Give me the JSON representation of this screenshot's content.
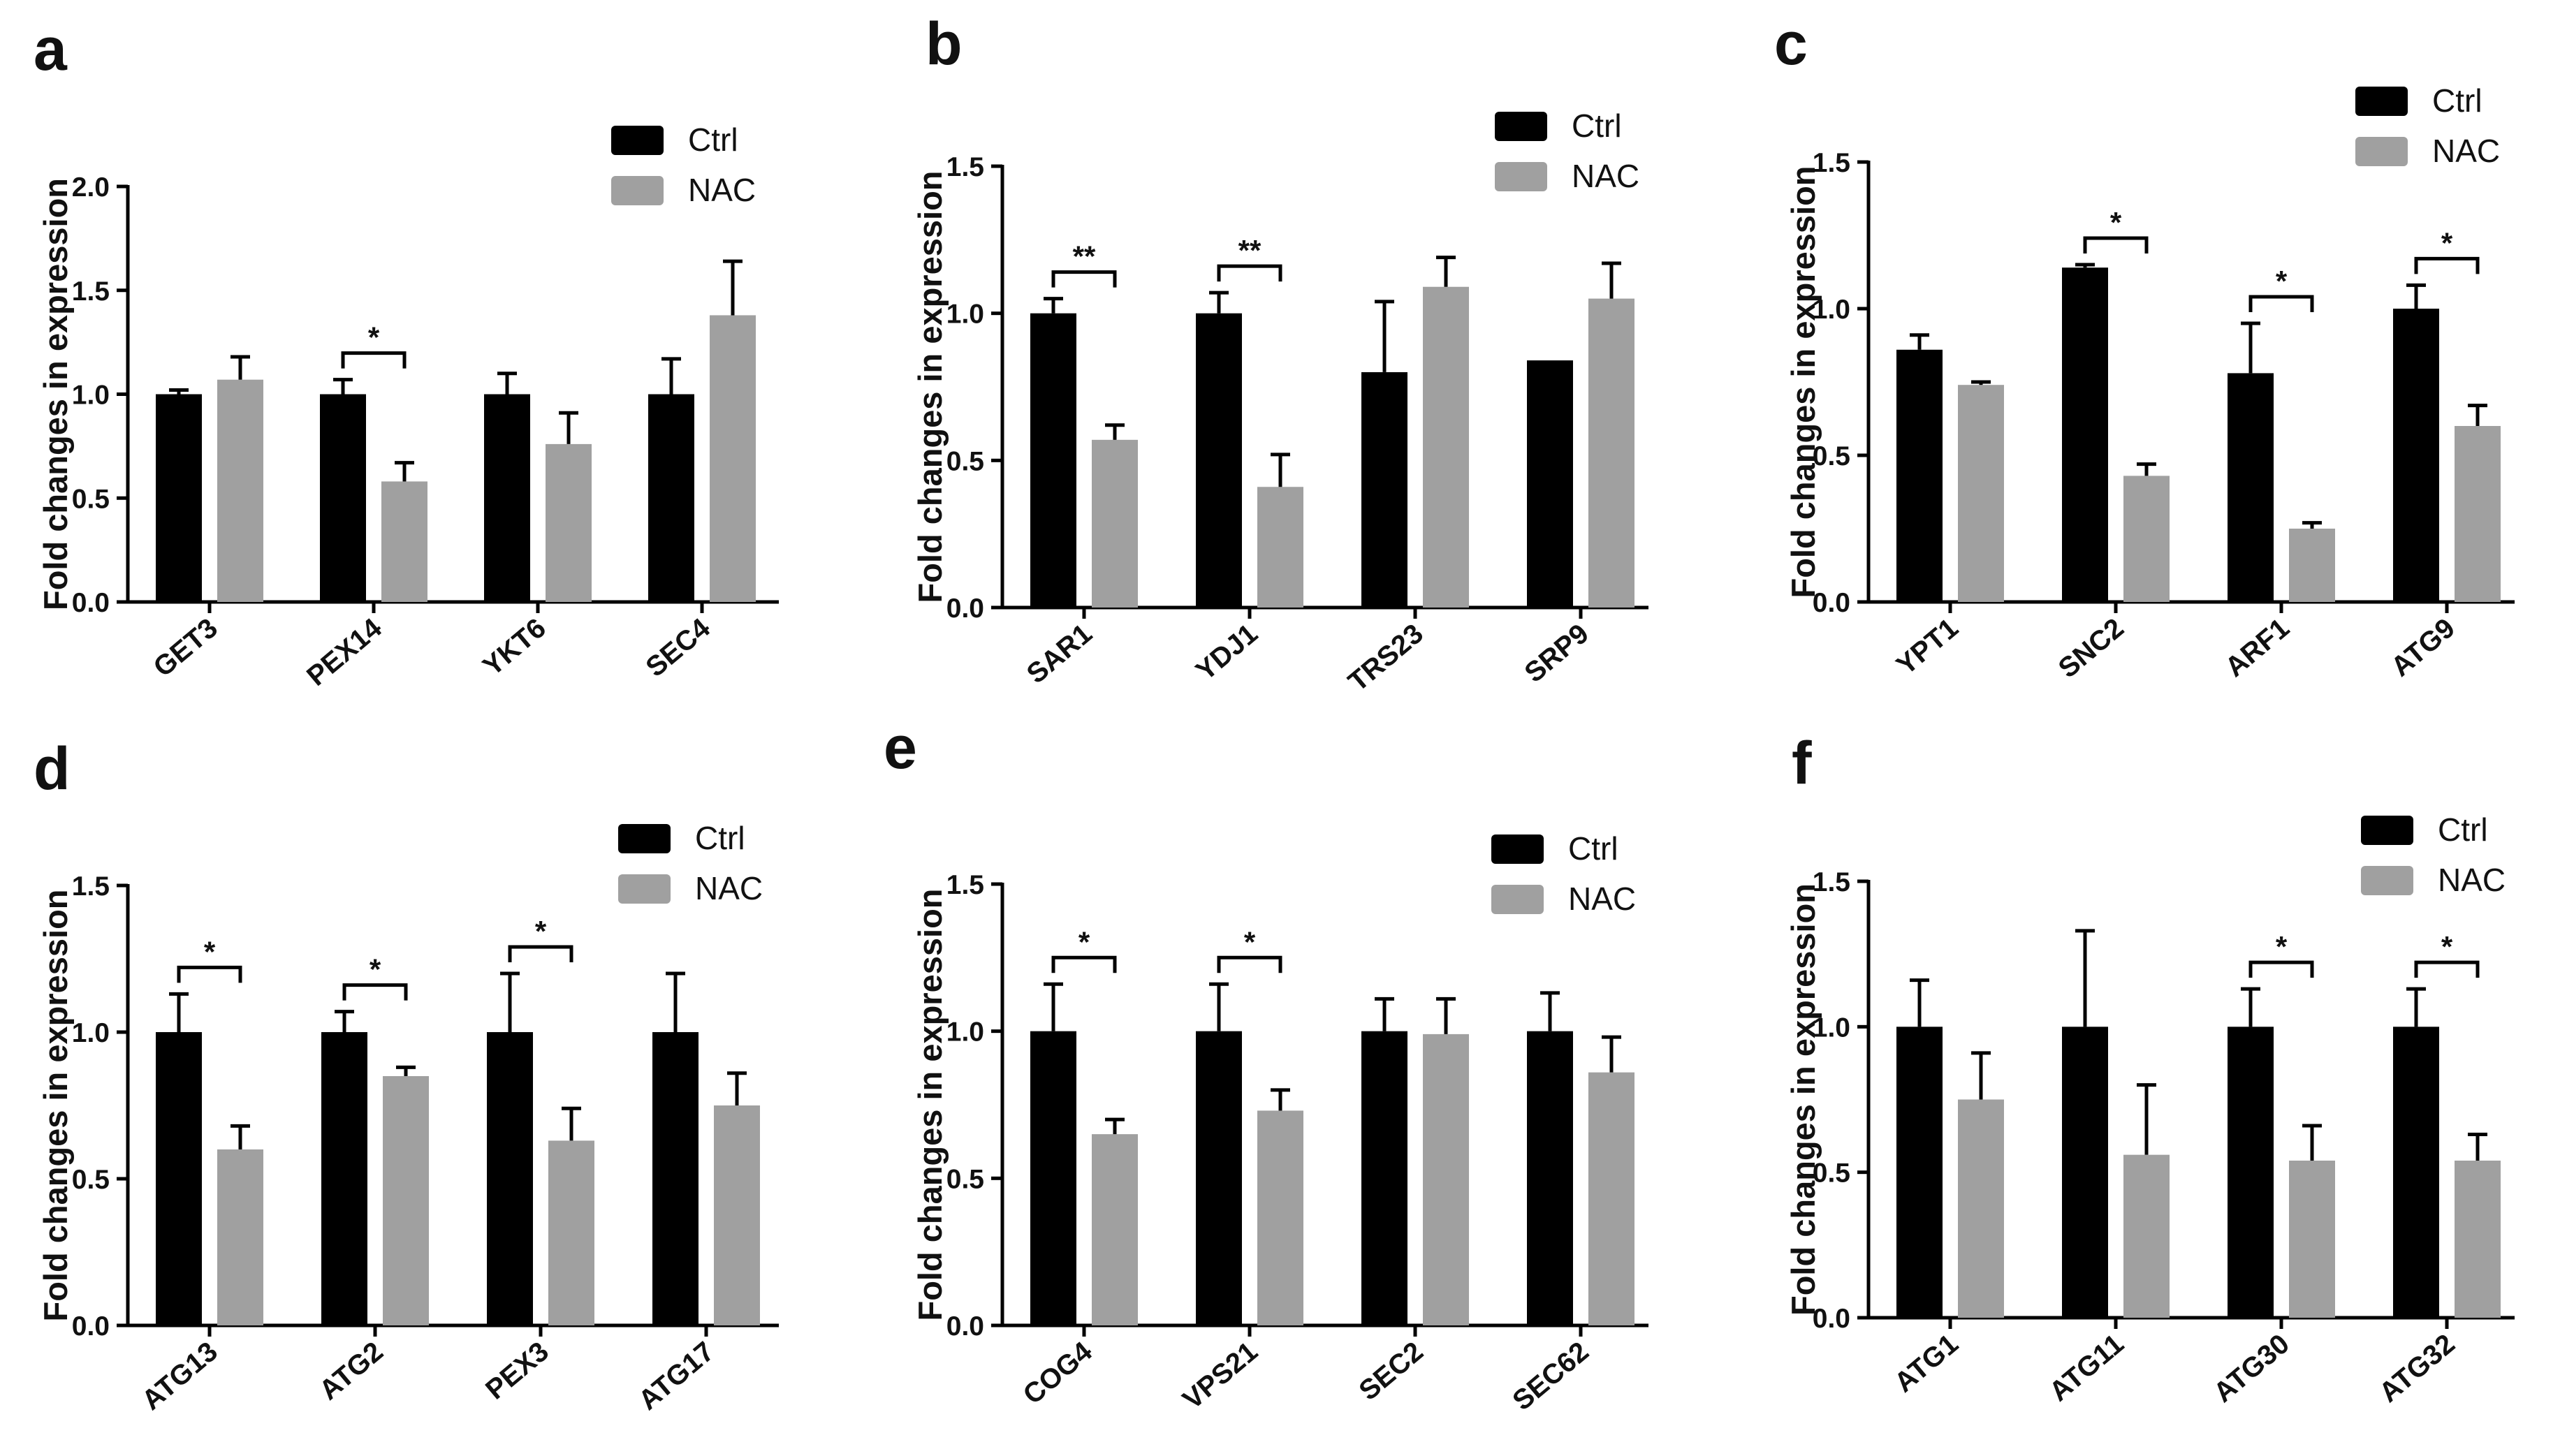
{
  "colors": {
    "Ctrl": "#000000",
    "NAC": "#a0a0a0"
  },
  "chart_data": [
    {
      "type": "bar",
      "panel": "a",
      "ylabel": "Fold changes in expression",
      "ylim": [
        0,
        2.0
      ],
      "yticks": [
        "0.0",
        "0.5",
        "1.0",
        "1.5",
        "2.0"
      ],
      "categories": [
        "GET3",
        "PEX14",
        "YKT6",
        "SEC4"
      ],
      "legend": [
        "Ctrl",
        "NAC"
      ],
      "series": [
        {
          "name": "Ctrl",
          "values": [
            1.0,
            1.0,
            1.0,
            1.0
          ],
          "errors": [
            0.02,
            0.07,
            0.1,
            0.17
          ]
        },
        {
          "name": "NAC",
          "values": [
            1.07,
            0.58,
            0.76,
            1.38
          ],
          "errors": [
            0.11,
            0.09,
            0.15,
            0.26
          ]
        }
      ],
      "annotations": [
        {
          "category": 1,
          "label": "*"
        }
      ]
    },
    {
      "type": "bar",
      "panel": "b",
      "ylabel": "Fold changes in expression",
      "ylim": [
        0,
        1.5
      ],
      "yticks": [
        "0.0",
        "0.5",
        "1.0",
        "1.5"
      ],
      "categories": [
        "SAR1",
        "YDJ1",
        "TRS23",
        "SRP9"
      ],
      "legend": [
        "Ctrl",
        "NAC"
      ],
      "series": [
        {
          "name": "Ctrl",
          "values": [
            1.0,
            1.0,
            0.8,
            0.84
          ],
          "errors": [
            0.05,
            0.07,
            0.24,
            0.0
          ]
        },
        {
          "name": "NAC",
          "values": [
            0.57,
            0.41,
            1.09,
            1.05
          ],
          "errors": [
            0.05,
            0.11,
            0.1,
            0.12
          ]
        }
      ],
      "annotations": [
        {
          "category": 0,
          "label": "**"
        },
        {
          "category": 1,
          "label": "**"
        }
      ]
    },
    {
      "type": "bar",
      "panel": "c",
      "ylabel": "Fold changes in expression",
      "ylim": [
        0,
        1.5
      ],
      "yticks": [
        "0.0",
        "0.5",
        "1.0",
        "1.5"
      ],
      "categories": [
        "YPT1",
        "SNC2",
        "ARF1",
        "ATG9"
      ],
      "legend": [
        "Ctrl",
        "NAC"
      ],
      "series": [
        {
          "name": "Ctrl",
          "values": [
            0.86,
            1.14,
            0.78,
            1.0
          ],
          "errors": [
            0.05,
            0.01,
            0.17,
            0.08
          ]
        },
        {
          "name": "NAC",
          "values": [
            0.74,
            0.43,
            0.25,
            0.6
          ],
          "errors": [
            0.01,
            0.04,
            0.02,
            0.07
          ]
        }
      ],
      "annotations": [
        {
          "category": 1,
          "label": "*"
        },
        {
          "category": 2,
          "label": "*"
        },
        {
          "category": 3,
          "label": "*"
        }
      ]
    },
    {
      "type": "bar",
      "panel": "d",
      "ylabel": "Fold changes in expression",
      "ylim": [
        0,
        1.5
      ],
      "yticks": [
        "0.0",
        "0.5",
        "1.0",
        "1.5"
      ],
      "categories": [
        "ATG13",
        "ATG2",
        "PEX3",
        "ATG17"
      ],
      "legend": [
        "Ctrl",
        "NAC"
      ],
      "series": [
        {
          "name": "Ctrl",
          "values": [
            1.0,
            1.0,
            1.0,
            1.0
          ],
          "errors": [
            0.13,
            0.07,
            0.2,
            0.2
          ]
        },
        {
          "name": "NAC",
          "values": [
            0.6,
            0.85,
            0.63,
            0.75
          ],
          "errors": [
            0.08,
            0.03,
            0.11,
            0.11
          ]
        }
      ],
      "annotations": [
        {
          "category": 0,
          "label": "*"
        },
        {
          "category": 1,
          "label": "*"
        },
        {
          "category": 2,
          "label": "*"
        }
      ]
    },
    {
      "type": "bar",
      "panel": "e",
      "ylabel": "Fold changes in expression",
      "ylim": [
        0,
        1.5
      ],
      "yticks": [
        "0.0",
        "0.5",
        "1.0",
        "1.5"
      ],
      "categories": [
        "COG4",
        "VPS21",
        "SEC2",
        "SEC62"
      ],
      "legend": [
        "Ctrl",
        "NAC"
      ],
      "series": [
        {
          "name": "Ctrl",
          "values": [
            1.0,
            1.0,
            1.0,
            1.0
          ],
          "errors": [
            0.16,
            0.16,
            0.11,
            0.13
          ]
        },
        {
          "name": "NAC",
          "values": [
            0.65,
            0.73,
            0.99,
            0.86
          ],
          "errors": [
            0.05,
            0.07,
            0.12,
            0.12
          ]
        }
      ],
      "annotations": [
        {
          "category": 0,
          "label": "*"
        },
        {
          "category": 1,
          "label": "*"
        }
      ]
    },
    {
      "type": "bar",
      "panel": "f",
      "ylabel": "Fold changes in expression",
      "ylim": [
        0,
        1.5
      ],
      "yticks": [
        "0.0",
        "0.5",
        "1.0",
        "1.5"
      ],
      "categories": [
        "ATG1",
        "ATG11",
        "ATG30",
        "ATG32"
      ],
      "legend": [
        "Ctrl",
        "NAC"
      ],
      "series": [
        {
          "name": "Ctrl",
          "values": [
            1.0,
            1.0,
            1.0,
            1.0
          ],
          "errors": [
            0.16,
            0.33,
            0.13,
            0.13
          ]
        },
        {
          "name": "NAC",
          "values": [
            0.75,
            0.56,
            0.54,
            0.54
          ],
          "errors": [
            0.16,
            0.24,
            0.12,
            0.09
          ]
        }
      ],
      "annotations": [
        {
          "category": 2,
          "label": "*"
        },
        {
          "category": 3,
          "label": "*"
        }
      ]
    }
  ]
}
